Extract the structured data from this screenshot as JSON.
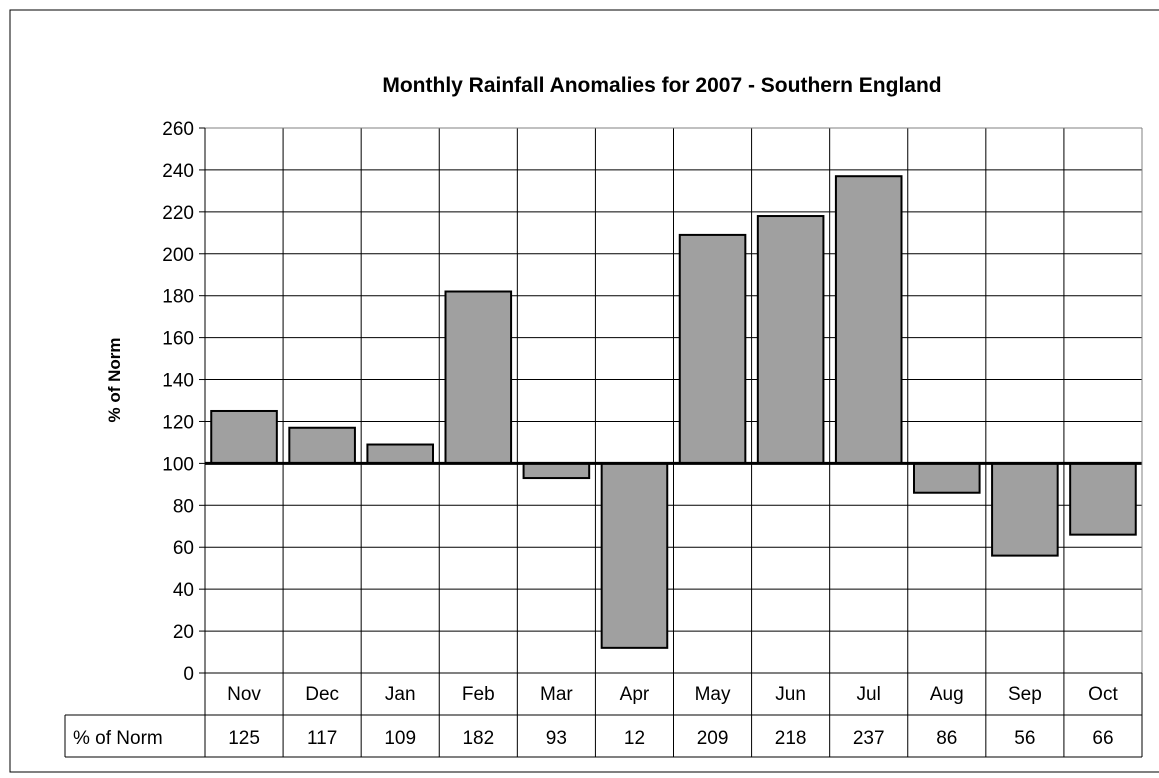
{
  "chart_data": {
    "type": "bar",
    "title": "Monthly Rainfall Anomalies for 2007 - Southern England",
    "xlabel": "",
    "ylabel": "% of Norm",
    "categories": [
      "Nov",
      "Dec",
      "Jan",
      "Feb",
      "Mar",
      "Apr",
      "May",
      "Jun",
      "Jul",
      "Aug",
      "Sep",
      "Oct"
    ],
    "series": [
      {
        "name": "% of Norm",
        "values": [
          125,
          117,
          109,
          182,
          93,
          12,
          209,
          218,
          237,
          86,
          56,
          66
        ]
      }
    ],
    "baseline": 100,
    "ylim": [
      0,
      260
    ],
    "yticks": [
      0,
      20,
      40,
      60,
      80,
      100,
      120,
      140,
      160,
      180,
      200,
      220,
      240,
      260
    ],
    "grid": true,
    "legend": "none",
    "data_table": true,
    "colors": {
      "bar_fill": "#a0a0a0",
      "bar_stroke": "#000000",
      "grid": "#000000",
      "plot_border": "#808080"
    }
  }
}
